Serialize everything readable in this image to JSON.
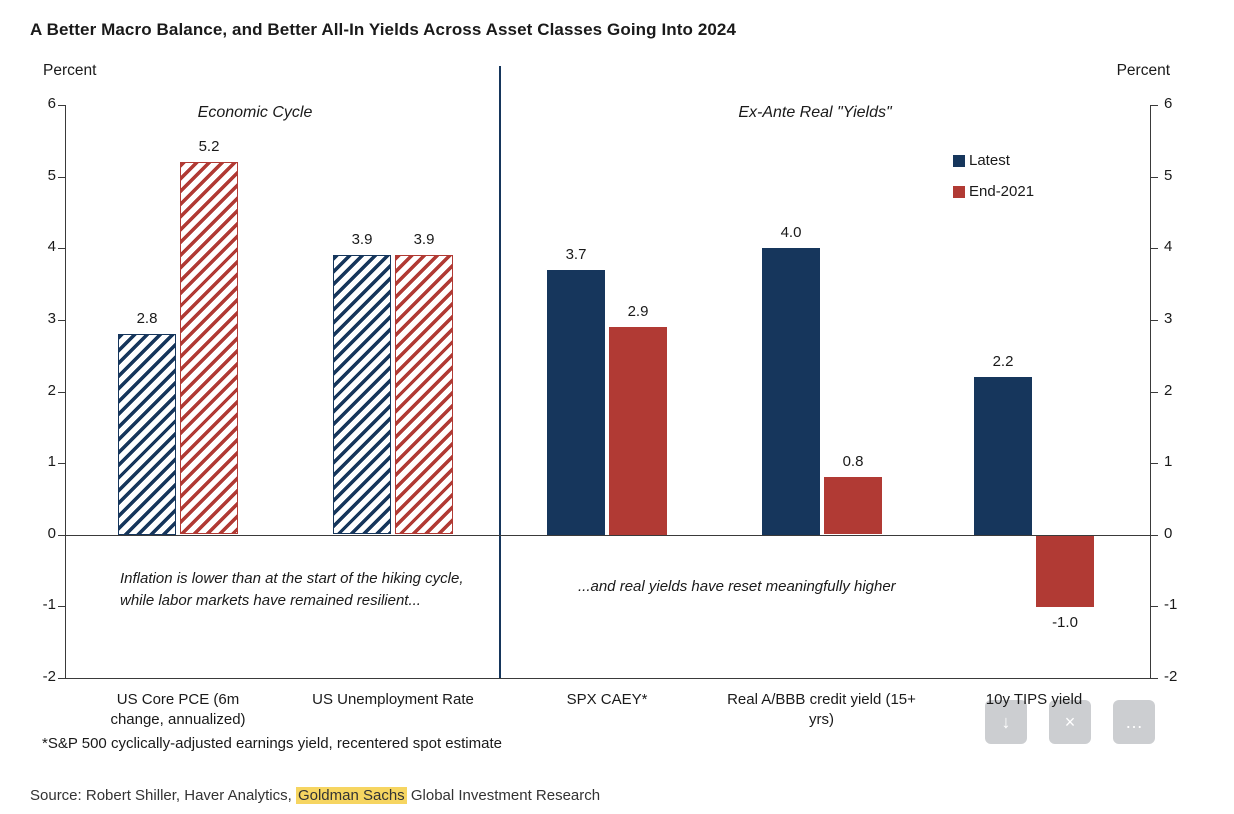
{
  "title": "A Better Macro Balance, and Better All-In Yields Across Asset Classes Going Into 2024",
  "axis": {
    "left_label": "Percent",
    "right_label": "Percent",
    "ticks": [
      6,
      5,
      4,
      3,
      2,
      1,
      0,
      -1,
      -2
    ]
  },
  "legend": [
    {
      "label": "Latest",
      "color": "#16365c"
    },
    {
      "label": "End-2021",
      "color": "#b13a34"
    }
  ],
  "chart_data": {
    "type": "bar",
    "ylim": [
      -2,
      6
    ],
    "ylabel_left": "Percent",
    "ylabel_right": "Percent",
    "grid": false,
    "legend_position": "top-right",
    "series": [
      {
        "name": "Latest",
        "color": "#16365c"
      },
      {
        "name": "End-2021",
        "color": "#b13a34"
      }
    ],
    "panels": [
      {
        "title": "Economic Cycle",
        "style": "hatched",
        "annotation": "Inflation is lower than at the start of the hiking cycle, while labor markets have remained resilient...",
        "groups": [
          {
            "category": "US Core PCE (6m change, annualized)",
            "latest": 2.8,
            "end_2021": 5.2
          },
          {
            "category": "US Unemployment Rate",
            "latest": 3.9,
            "end_2021": 3.9
          }
        ]
      },
      {
        "title": "Ex-Ante Real \"Yields\"",
        "style": "solid",
        "annotation": "...and real yields have reset meaningfully higher",
        "groups": [
          {
            "category": "SPX CAEY*",
            "latest": 3.7,
            "end_2021": 2.9
          },
          {
            "category": "Real A/BBB credit yield (15+ yrs)",
            "latest": 4.0,
            "end_2021": 0.8
          },
          {
            "category": "10y TIPS yield",
            "latest": 2.2,
            "end_2021": -1.0
          }
        ]
      }
    ]
  },
  "footnote": "*S&P 500 cyclically-adjusted earnings yield, recentered spot estimate",
  "source": {
    "prefix": "Source: Robert Shiller, Haver Analytics, ",
    "highlight": "Goldman Sachs",
    "suffix": " Global Investment Research"
  },
  "overlay_icons": [
    {
      "name": "download-icon",
      "glyph": "↓"
    },
    {
      "name": "close-icon",
      "glyph": "×"
    },
    {
      "name": "more-icon",
      "glyph": "…"
    }
  ],
  "colors": {
    "latest": "#16365c",
    "end_2021": "#b13a34",
    "divider": "#16365c",
    "axis": "#3a3a3a",
    "highlight_bg": "#f6d561"
  }
}
